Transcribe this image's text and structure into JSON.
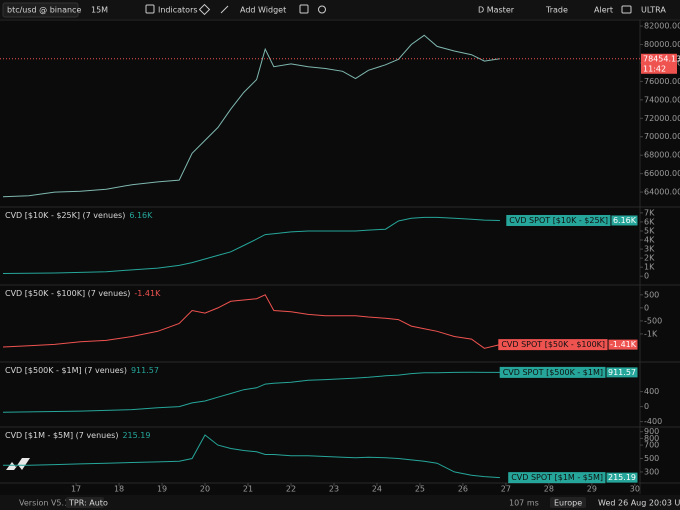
{
  "toolbar": {
    "symbol": "btc/usd @ binance",
    "interval": "15M",
    "indicators": "Indicators",
    "add_widget": "Add Widget",
    "layout": "D Master",
    "trade": "Trade",
    "alert": "Alert",
    "plan": "ULTRA"
  },
  "status": {
    "version": "Version V5.169",
    "tpr": "TPR: Auto",
    "latency": "107 ms",
    "region": "Europe",
    "datetime": "Wed 26 Aug 20:03 UTC"
  },
  "chart_data": {
    "type": "line",
    "x": [
      15.3,
      15.9,
      16.5,
      17.1,
      17.7,
      18.3,
      18.9,
      19.4,
      19.7,
      20,
      20.3,
      20.6,
      20.9,
      21.2,
      21.4,
      21.6,
      22,
      22.4,
      22.8,
      23.2,
      23.5,
      23.8,
      24.2,
      24.5,
      24.8,
      25.1,
      25.4,
      25.8,
      26.2,
      26.5,
      26.86
    ],
    "xlim": [
      15.23,
      30.12
    ],
    "xticks": [
      17,
      18,
      19,
      20,
      21,
      22,
      23,
      24,
      25,
      26,
      27,
      28,
      29,
      30
    ],
    "panes": [
      {
        "color": "#7fb8b0",
        "ylim": [
          62600,
          83200
        ],
        "yticks": [
          {
            "value": 64000,
            "label": "64000.00"
          },
          {
            "value": 66000,
            "label": "66000.00"
          },
          {
            "value": 68000,
            "label": "68000.00"
          },
          {
            "value": 70000,
            "label": "70000.00"
          },
          {
            "value": 72000,
            "label": "72000.00"
          },
          {
            "value": 74000,
            "label": "74000.00"
          },
          {
            "value": 76000,
            "label": "76000.00"
          },
          {
            "value": 78000,
            "label": "78000.00"
          },
          {
            "value": 80000,
            "label": "80000.00"
          },
          {
            "value": 82000,
            "label": "82000.00"
          }
        ],
        "values": [
          63500,
          63600,
          64000,
          64100,
          64300,
          64800,
          65100,
          65300,
          68200,
          69600,
          71000,
          73000,
          74800,
          76200,
          79500,
          77600,
          77900,
          77600,
          77400,
          77100,
          76300,
          77200,
          77800,
          78400,
          80000,
          81000,
          79800,
          79300,
          78900,
          78200,
          78454.13
        ],
        "last_price": 78454.13,
        "countdown": "11:42"
      },
      {
        "title": "CVD [$10K - $25K] (7 venues)",
        "value": 6160,
        "value_label": "6.16K",
        "badge": "CVD SPOT [$10K - $25K]",
        "color": "#26a69a",
        "ylim": [
          -750,
          7430
        ],
        "yticks": [
          0,
          {
            "value": 1000,
            "label": "1K"
          },
          {
            "value": 2000,
            "label": "2K"
          },
          {
            "value": 3000,
            "label": "3K"
          },
          {
            "value": 4000,
            "label": "4K"
          },
          {
            "value": 5000,
            "label": "5K"
          },
          {
            "value": 6000,
            "label": "6K"
          },
          {
            "value": 7000,
            "label": "7K"
          }
        ],
        "values": [
          300,
          320,
          360,
          420,
          500,
          700,
          900,
          1200,
          1500,
          1900,
          2300,
          2700,
          3400,
          4100,
          4600,
          4700,
          4900,
          5000,
          5000,
          5000,
          5000,
          5100,
          5200,
          6100,
          6400,
          6500,
          6500,
          6400,
          6300,
          6200,
          6160
        ]
      },
      {
        "title": "CVD [$50K - $100K] (7 venues)",
        "value": -1410,
        "value_label": "-1.41K",
        "badge": "CVD SPOT [$50K - $100K]",
        "color": "#ef5350",
        "ylim": [
          -2000,
          800
        ],
        "yticks": [
          500,
          0,
          -500,
          {
            "value": -1000,
            "label": "-1K"
          }
        ],
        "values": [
          -1500,
          -1450,
          -1400,
          -1300,
          -1250,
          -1100,
          -900,
          -600,
          -100,
          -200,
          0,
          250,
          300,
          350,
          500,
          -100,
          -150,
          -250,
          -300,
          -300,
          -300,
          -350,
          -400,
          -450,
          -700,
          -800,
          -900,
          -1100,
          -1200,
          -1550,
          -1410
        ]
      },
      {
        "title": "CVD [$500K - $1M] (7 venues)",
        "value": 911.57,
        "badge": "CVD SPOT [$500K - $1M]",
        "color": "#26a69a",
        "ylim": [
          -490,
          1135
        ],
        "yticks": [
          400,
          0,
          -400
        ],
        "values": [
          -150,
          -140,
          -130,
          -120,
          -100,
          -80,
          -30,
          0,
          100,
          150,
          250,
          350,
          450,
          500,
          600,
          620,
          650,
          700,
          720,
          740,
          760,
          780,
          820,
          840,
          880,
          900,
          900,
          910,
          915,
          910,
          911.57
        ]
      },
      {
        "title": "CVD [$1M - $5M] (7 venues)",
        "value": 215.19,
        "badge": "CVD SPOT [$1M - $5M]",
        "color": "#26a69a",
        "ylim": [
          150,
          940
        ],
        "yticks": [
          900,
          800,
          700,
          500,
          300
        ],
        "values": [
          400,
          400,
          410,
          420,
          430,
          440,
          450,
          460,
          500,
          850,
          700,
          650,
          620,
          600,
          560,
          560,
          540,
          540,
          530,
          520,
          510,
          520,
          510,
          500,
          480,
          460,
          430,
          300,
          250,
          230,
          215.19
        ]
      }
    ]
  }
}
